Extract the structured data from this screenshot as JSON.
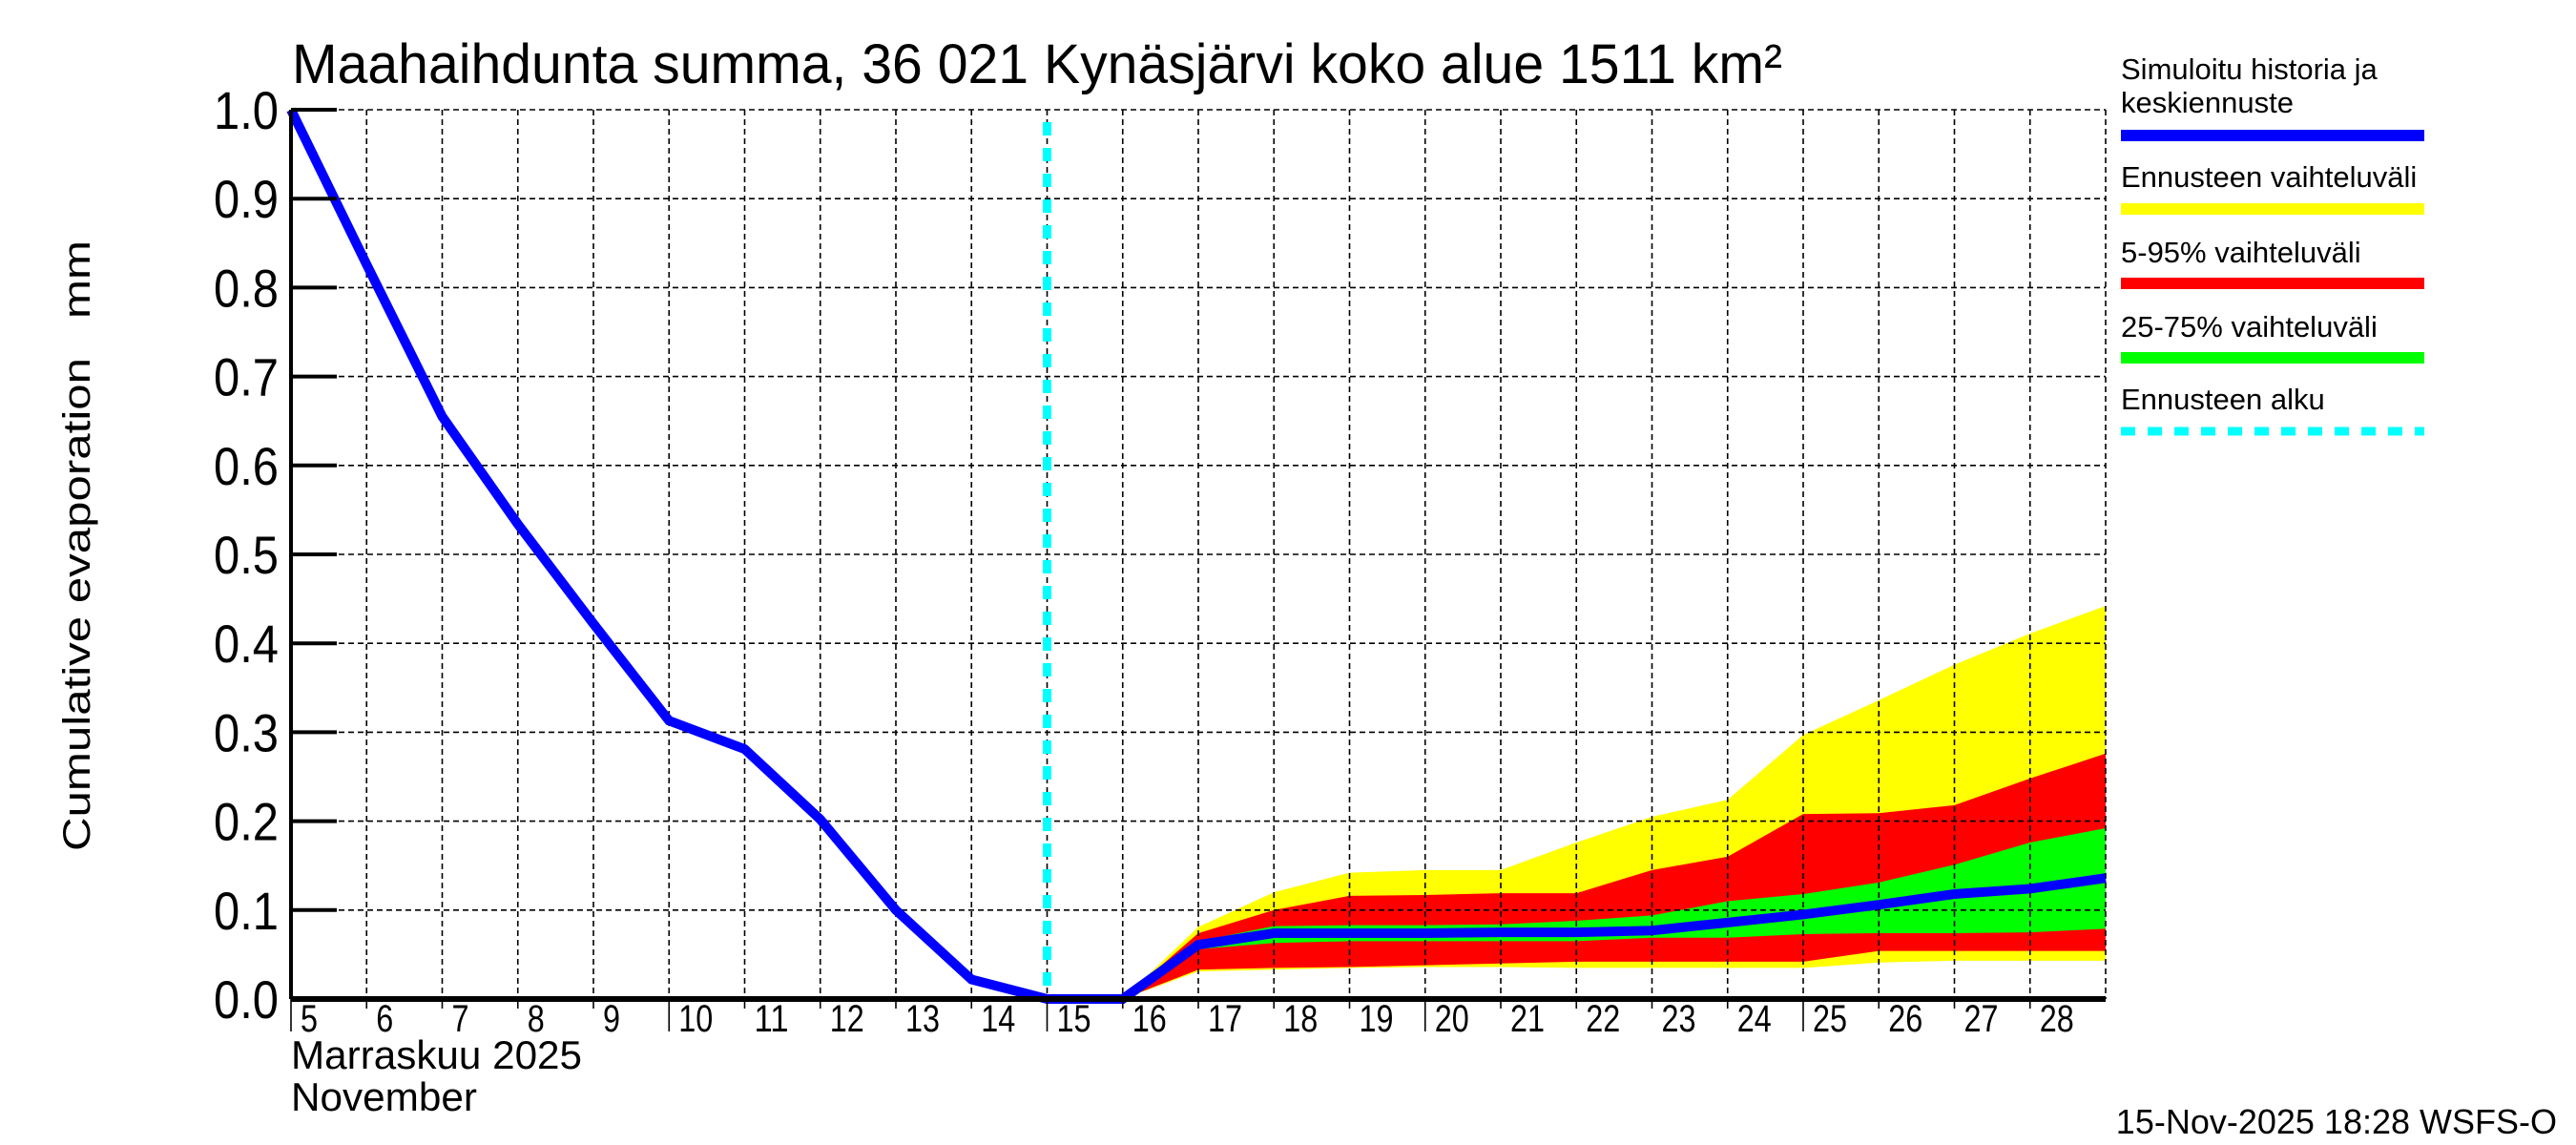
{
  "chart_data": {
    "type": "area",
    "title": "Maahaihdunta summa, 36 021 Kynäsjärvi koko alue 1511 km²",
    "ylabel": "Cumulative evaporation   mm",
    "xlabel_line1": "Marraskuu 2025",
    "xlabel_line2": "November",
    "xlim": [
      5,
      29
    ],
    "ylim": [
      0,
      1.0
    ],
    "grid": true,
    "legend_placement": "right",
    "yticks": [
      "0.0",
      "0.1",
      "0.2",
      "0.3",
      "0.4",
      "0.5",
      "0.6",
      "0.7",
      "0.8",
      "0.9",
      "1.0"
    ],
    "xticks": [
      "5",
      "6",
      "7",
      "8",
      "9",
      "10",
      "11",
      "12",
      "13",
      "14",
      "15",
      "16",
      "17",
      "18",
      "19",
      "20",
      "21",
      "22",
      "23",
      "24",
      "25",
      "26",
      "27",
      "28"
    ],
    "forecast_start_day": 15,
    "colors": {
      "median": "#0000ff",
      "range_full": "#ffff00",
      "range_5_95": "#ff0000",
      "range_25_75": "#00ff00",
      "forecast_start": "#00ffff"
    },
    "series": [
      {
        "name": "Simuloitu historia ja keskiennuste",
        "kind": "line",
        "x": [
          5,
          6,
          7,
          8,
          9,
          10,
          11,
          12,
          13,
          14,
          15,
          16,
          17,
          18,
          19,
          20,
          21,
          22,
          23,
          24,
          25,
          26,
          27,
          28,
          29
        ],
        "values": [
          1.0,
          0.826,
          0.655,
          0.534,
          0.422,
          0.313,
          0.281,
          0.202,
          0.1,
          0.022,
          0.0,
          0.0,
          0.061,
          0.074,
          0.074,
          0.074,
          0.075,
          0.075,
          0.077,
          0.086,
          0.095,
          0.106,
          0.118,
          0.124,
          0.136
        ]
      },
      {
        "name": "Ennusteen vaihteluväli",
        "kind": "band",
        "x": [
          16,
          17,
          18,
          19,
          20,
          21,
          22,
          23,
          24,
          25,
          26,
          27,
          28,
          29
        ],
        "lower": [
          0,
          0.031,
          0.033,
          0.035,
          0.036,
          0.036,
          0.035,
          0.035,
          0.035,
          0.035,
          0.041,
          0.043,
          0.043,
          0.043
        ],
        "upper": [
          0,
          0.081,
          0.12,
          0.142,
          0.145,
          0.145,
          0.176,
          0.205,
          0.224,
          0.297,
          0.336,
          0.376,
          0.411,
          0.442
        ]
      },
      {
        "name": "5-95% vaihteluväli",
        "kind": "band",
        "x": [
          16,
          17,
          18,
          19,
          20,
          21,
          22,
          23,
          24,
          25,
          26,
          27,
          28,
          29
        ],
        "lower": [
          0,
          0.033,
          0.035,
          0.036,
          0.038,
          0.04,
          0.042,
          0.042,
          0.042,
          0.042,
          0.054,
          0.054,
          0.054,
          0.054
        ],
        "upper": [
          0,
          0.074,
          0.1,
          0.116,
          0.117,
          0.119,
          0.119,
          0.145,
          0.16,
          0.208,
          0.209,
          0.218,
          0.248,
          0.276
        ]
      },
      {
        "name": "25-75% vaihteluväli",
        "kind": "band",
        "x": [
          16,
          17,
          18,
          19,
          20,
          21,
          22,
          23,
          24,
          25,
          26,
          27,
          28,
          29
        ],
        "lower": [
          0,
          0.056,
          0.063,
          0.065,
          0.065,
          0.065,
          0.065,
          0.069,
          0.069,
          0.073,
          0.074,
          0.074,
          0.075,
          0.079
        ],
        "upper": [
          0,
          0.065,
          0.082,
          0.083,
          0.083,
          0.084,
          0.088,
          0.094,
          0.11,
          0.118,
          0.131,
          0.151,
          0.176,
          0.192
        ]
      }
    ],
    "legend": [
      {
        "label_line1": "Simuloitu historia ja",
        "label_line2": "keskiennuste",
        "color": "#0000ff",
        "style": "solid"
      },
      {
        "label_line1": "Ennusteen vaihteluväli",
        "color": "#ffff00",
        "style": "solid"
      },
      {
        "label_line1": "5-95% vaihteluväli",
        "color": "#ff0000",
        "style": "solid"
      },
      {
        "label_line1": "25-75% vaihteluväli",
        "color": "#00ff00",
        "style": "solid"
      },
      {
        "label_line1": "Ennusteen alku",
        "color": "#00ffff",
        "style": "dashed"
      }
    ],
    "footer": "15-Nov-2025 18:28 WSFS-O"
  }
}
